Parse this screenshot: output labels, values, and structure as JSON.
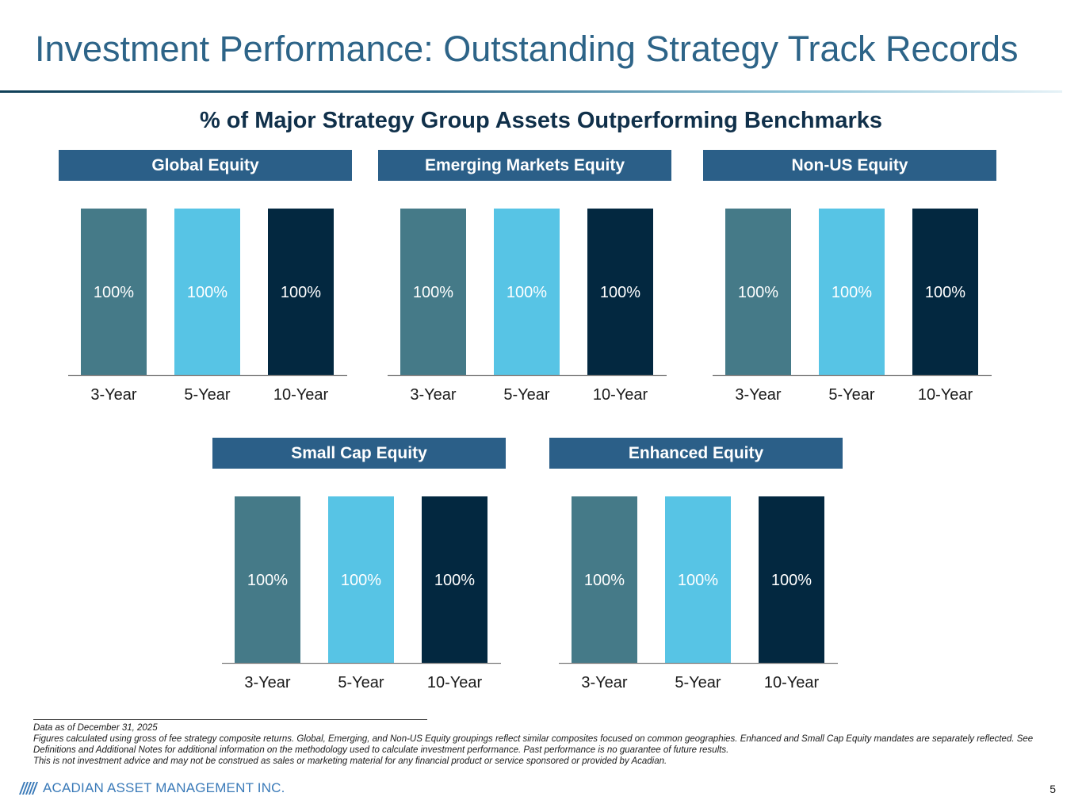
{
  "page": {
    "title": "Investment Performance: Outstanding Strategy Track Records",
    "subtitle": "% of Major Strategy Group Assets Outperforming Benchmarks",
    "page_number": "5"
  },
  "colors": {
    "three_year": "#457a88",
    "five_year": "#57c4e5",
    "ten_year": "#032840",
    "header": "#2b5f88",
    "title": "#2d6488"
  },
  "chart_data": [
    {
      "type": "bar",
      "title": "Global Equity",
      "categories": [
        "3-Year",
        "5-Year",
        "10-Year"
      ],
      "values": [
        100,
        100,
        100
      ],
      "data_labels": [
        "100%",
        "100%",
        "100%"
      ],
      "ylim": [
        0,
        100
      ],
      "xlabel": "",
      "ylabel": ""
    },
    {
      "type": "bar",
      "title": "Emerging Markets Equity",
      "categories": [
        "3-Year",
        "5-Year",
        "10-Year"
      ],
      "values": [
        100,
        100,
        100
      ],
      "data_labels": [
        "100%",
        "100%",
        "100%"
      ],
      "ylim": [
        0,
        100
      ],
      "xlabel": "",
      "ylabel": ""
    },
    {
      "type": "bar",
      "title": "Non-US Equity",
      "categories": [
        "3-Year",
        "5-Year",
        "10-Year"
      ],
      "values": [
        100,
        100,
        100
      ],
      "data_labels": [
        "100%",
        "100%",
        "100%"
      ],
      "ylim": [
        0,
        100
      ],
      "xlabel": "",
      "ylabel": ""
    },
    {
      "type": "bar",
      "title": "Small Cap Equity",
      "categories": [
        "3-Year",
        "5-Year",
        "10-Year"
      ],
      "values": [
        100,
        100,
        100
      ],
      "data_labels": [
        "100%",
        "100%",
        "100%"
      ],
      "ylim": [
        0,
        100
      ],
      "xlabel": "",
      "ylabel": ""
    },
    {
      "type": "bar",
      "title": "Enhanced Equity",
      "categories": [
        "3-Year",
        "5-Year",
        "10-Year"
      ],
      "values": [
        100,
        100,
        100
      ],
      "data_labels": [
        "100%",
        "100%",
        "100%"
      ],
      "ylim": [
        0,
        100
      ],
      "xlabel": "",
      "ylabel": ""
    }
  ],
  "footnotes": {
    "line1": "Data as of December 31, 2025",
    "line2": "Figures calculated using gross of fee strategy composite returns. Global, Emerging, and Non-US Equity groupings reflect similar composites focused on common geographies. Enhanced and Small Cap Equity mandates are separately reflected. See Definitions and Additional Notes for additional information on the methodology used to calculate investment performance. Past performance is no guarantee of future results.",
    "line3": "This is not investment advice and may not be construed as sales or marketing material for any financial product or service sponsored or provided by Acadian."
  },
  "footer": {
    "logo_icon": "acadian-mountain-logo-icon",
    "company": "ACADIAN ASSET MANAGEMENT INC."
  }
}
